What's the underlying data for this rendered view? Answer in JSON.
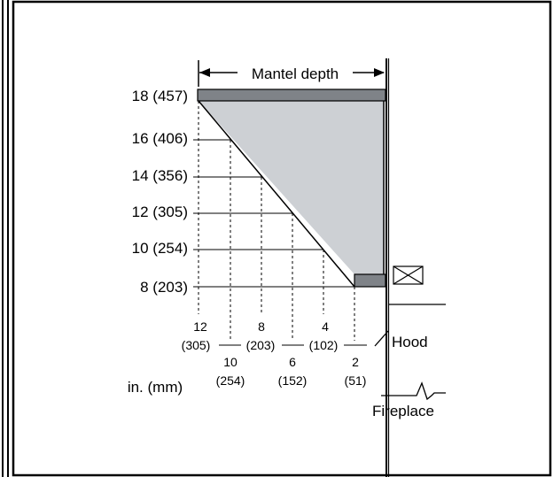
{
  "diagram": {
    "mantel_depth_label": "Mantel depth",
    "units_label": "in. (mm)",
    "hood_label": "Hood",
    "fireplace_label": "Fireplace",
    "left_labels": [
      "18 (457)",
      "16 (406)",
      "14 (356)",
      "12 (305)",
      "10 (254)",
      "8 (203)"
    ],
    "bottom_labels": {
      "d12_in": "12",
      "d12_mm": "(305)",
      "d10_in": "10",
      "d10_mm": "(254)",
      "d8_in": "8",
      "d8_mm": "(203)",
      "d6_in": "6",
      "d6_mm": "(152)",
      "d4_in": "4",
      "d4_mm": "(102)",
      "d2_in": "2",
      "d2_mm": "(51)"
    },
    "colors": {
      "shaded_area": "#cdd0d4",
      "mantel_bar": "#7f8388",
      "line": "#000000"
    },
    "icons": [
      "checkbox-cross-icon"
    ]
  }
}
